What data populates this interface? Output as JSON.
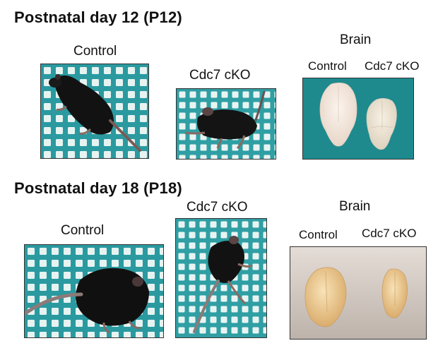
{
  "row1": {
    "heading": "Postnatal day 12 (P12)",
    "control_label": "Control",
    "cko_label": "Cdc7 cKO",
    "brain_title": "Brain",
    "brain_control_label": "Control",
    "brain_cko_label": "Cdc7 cKO"
  },
  "row2": {
    "heading": "Postnatal day 18 (P18)",
    "control_label": "Control",
    "cko_label": "Cdc7 cKO",
    "brain_title": "Brain",
    "brain_control_label": "Control",
    "brain_cko_label": "Cdc7 cKO"
  },
  "colors": {
    "grid_teal": "#2a9aa0",
    "grid_cell": "#e6f3f1",
    "brain_bg_teal": "#1e8a8e",
    "mouse_black": "#121212",
    "brain_p12": "#f2e6dc",
    "brain_p18": "#e9c98f"
  }
}
